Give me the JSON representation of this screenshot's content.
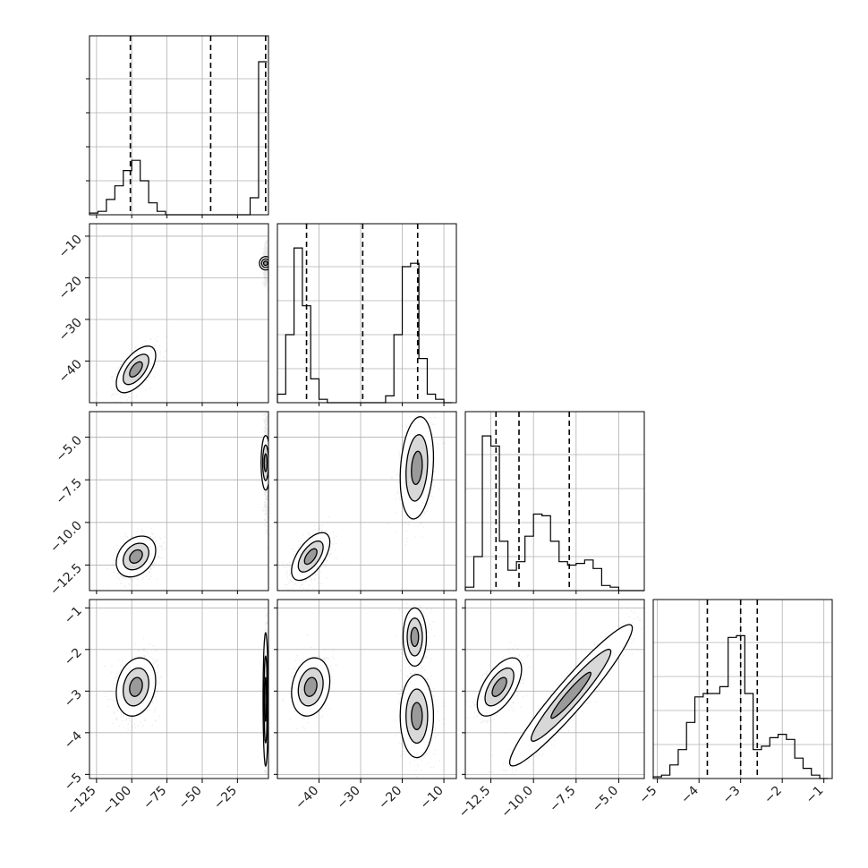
{
  "chart_data": {
    "type": "corner",
    "grid": true,
    "n_params": 4,
    "parameters": [
      {
        "index": 0,
        "range": [
          -130,
          -3
        ],
        "ticks": [
          -125,
          -100,
          -75,
          -50,
          -25
        ],
        "tick_labels": [
          "−125",
          "−100",
          "−75",
          "−50",
          "−25"
        ]
      },
      {
        "index": 1,
        "range": [
          -50,
          -7
        ],
        "ticks": [
          -40,
          -30,
          -20,
          -10
        ],
        "tick_labels": [
          "−40",
          "−30",
          "−20",
          "−10"
        ]
      },
      {
        "index": 2,
        "range": [
          -14,
          -3.5
        ],
        "ticks": [
          -12.5,
          -10.0,
          -7.5,
          -5.0
        ],
        "tick_labels": [
          "−12.5",
          "−10.0",
          "−7.5",
          "−5.0"
        ]
      },
      {
        "index": 3,
        "range": [
          -5.1,
          -0.8
        ],
        "ticks": [
          -5,
          -4,
          -3,
          -2,
          -1
        ],
        "tick_labels": [
          "−5",
          "−4",
          "−3",
          "−2",
          "−1"
        ]
      }
    ],
    "histograms": [
      {
        "param": 0,
        "bin_edges": [
          -130,
          -124,
          -118,
          -112,
          -106,
          -100,
          -94,
          -88,
          -82,
          -76,
          -70,
          -64,
          -58,
          -52,
          -46,
          -40,
          -34,
          -28,
          -22,
          -16,
          -10,
          -4
        ],
        "counts": [
          0.01,
          0.02,
          0.09,
          0.17,
          0.26,
          0.32,
          0.2,
          0.07,
          0.02,
          0,
          0,
          0,
          0,
          0,
          0,
          0,
          0,
          0,
          0,
          0.1,
          0.9
        ],
        "quantiles": [
          -101,
          -44,
          -5
        ]
      },
      {
        "param": 1,
        "bin_edges": [
          -50,
          -48,
          -46,
          -44,
          -42,
          -40,
          -38,
          -36,
          -34,
          -32,
          -30,
          -28,
          -26,
          -24,
          -22,
          -20,
          -18,
          -16,
          -14,
          -12,
          -10,
          -8
        ],
        "counts": [
          0.05,
          0.4,
          0.91,
          0.57,
          0.14,
          0.02,
          0.0,
          0,
          0,
          0,
          0,
          0,
          0,
          0.04,
          0.4,
          0.8,
          0.82,
          0.26,
          0.05,
          0.02,
          0
        ],
        "quantiles": [
          -43,
          -29.5,
          -16.3
        ]
      },
      {
        "param": 2,
        "bin_edges": [
          -14,
          -13.5,
          -13,
          -12.5,
          -12,
          -11.5,
          -11,
          -10.5,
          -10,
          -9.5,
          -9,
          -8.5,
          -8,
          -7.5,
          -7,
          -6.5,
          -6,
          -5.5,
          -5,
          -4.5,
          -4,
          -3.5
        ],
        "counts": [
          0.02,
          0.2,
          0.91,
          0.85,
          0.29,
          0.12,
          0.17,
          0.32,
          0.45,
          0.44,
          0.29,
          0.17,
          0.15,
          0.16,
          0.18,
          0.13,
          0.03,
          0.02,
          0,
          0,
          0
        ],
        "quantiles": [
          -12.2,
          -10.85,
          -7.9
        ]
      },
      {
        "param": 3,
        "bin_edges": [
          -5.1,
          -4.9,
          -4.7,
          -4.5,
          -4.3,
          -4.1,
          -3.9,
          -3.7,
          -3.5,
          -3.3,
          -3.1,
          -2.9,
          -2.7,
          -2.5,
          -2.3,
          -2.1,
          -1.9,
          -1.7,
          -1.5,
          -1.3,
          -1.1,
          -0.9
        ],
        "counts": [
          0.01,
          0.02,
          0.08,
          0.17,
          0.33,
          0.48,
          0.5,
          0.5,
          0.54,
          0.83,
          0.84,
          0.5,
          0.17,
          0.19,
          0.24,
          0.26,
          0.23,
          0.12,
          0.06,
          0.02,
          0
        ],
        "quantiles": [
          -3.8,
          -3.0,
          -2.6
        ]
      }
    ],
    "pair_panels": [
      {
        "x": 0,
        "y": 1,
        "modes": [
          {
            "mx": -97,
            "my": -42,
            "sx": 7,
            "sy": 2.8,
            "rho": 0.6,
            "w": 0.5,
            "density": "rgba(60,60,60,0.11)"
          },
          {
            "mx": -5,
            "my": -16.5,
            "sx": 0.8,
            "sy": 2.2,
            "rho": 0,
            "w": 0.5,
            "density": "rgba(60,60,60,0.11)"
          }
        ]
      },
      {
        "x": 0,
        "y": 2,
        "modes": [
          {
            "mx": -97,
            "my": -12,
            "sx": 7,
            "sy": 0.6,
            "rho": 0.3,
            "w": 0.5,
            "density": "rgba(60,60,60,0.11)"
          },
          {
            "mx": -5,
            "my": -6.5,
            "sx": 0.8,
            "sy": 1.6,
            "rho": 0,
            "w": 0.5,
            "density": "rgba(60,60,60,0.11)"
          }
        ]
      },
      {
        "x": 1,
        "y": 2,
        "modes": [
          {
            "mx": -42,
            "my": -12,
            "sx": 2.3,
            "sy": 0.7,
            "rho": 0.6,
            "w": 0.5,
            "density": "rgba(60,60,60,0.11)"
          },
          {
            "mx": -16.5,
            "my": -6.8,
            "sx": 2.0,
            "sy": 1.5,
            "rho": 0.2,
            "w": 0.5,
            "density": "rgba(60,60,60,0.11)"
          }
        ]
      },
      {
        "x": 0,
        "y": 3,
        "modes": [
          {
            "mx": -97,
            "my": -2.9,
            "sx": 7,
            "sy": 0.35,
            "rho": 0.2,
            "w": 0.5,
            "density": "rgba(60,60,60,0.11)"
          },
          {
            "mx": -5,
            "my": -3.2,
            "sx": 0.8,
            "sy": 0.9,
            "rho": 0,
            "w": 0.5,
            "density": "rgba(60,60,60,0.11)"
          }
        ]
      },
      {
        "x": 1,
        "y": 3,
        "modes": [
          {
            "mx": -42,
            "my": -2.9,
            "sx": 2.3,
            "sy": 0.35,
            "rho": 0.2,
            "w": 0.4,
            "density": "rgba(60,60,60,0.11)"
          },
          {
            "mx": -16.5,
            "my": -3.6,
            "sx": 2.0,
            "sy": 0.5,
            "rho": 0,
            "w": 0.38,
            "density": "rgba(60,60,60,0.11)"
          },
          {
            "mx": -17,
            "my": -1.7,
            "sx": 1.4,
            "sy": 0.35,
            "rho": 0,
            "w": 0.22,
            "density": "rgba(60,60,60,0.11)"
          }
        ]
      },
      {
        "x": 2,
        "y": 3,
        "modes": [
          {
            "mx": -12,
            "my": -2.9,
            "sx": 0.65,
            "sy": 0.35,
            "rho": 0.6,
            "w": 0.45,
            "density": "rgba(60,60,60,0.11)"
          },
          {
            "mx": -7.8,
            "my": -3.1,
            "sx": 1.8,
            "sy": 0.85,
            "rho": 0.95,
            "w": 0.55,
            "density": "rgba(60,60,60,0.11)"
          }
        ]
      }
    ],
    "colors": {
      "line": "#000000",
      "grid": "#b0b0b0",
      "density": "#3c3c3c"
    }
  }
}
